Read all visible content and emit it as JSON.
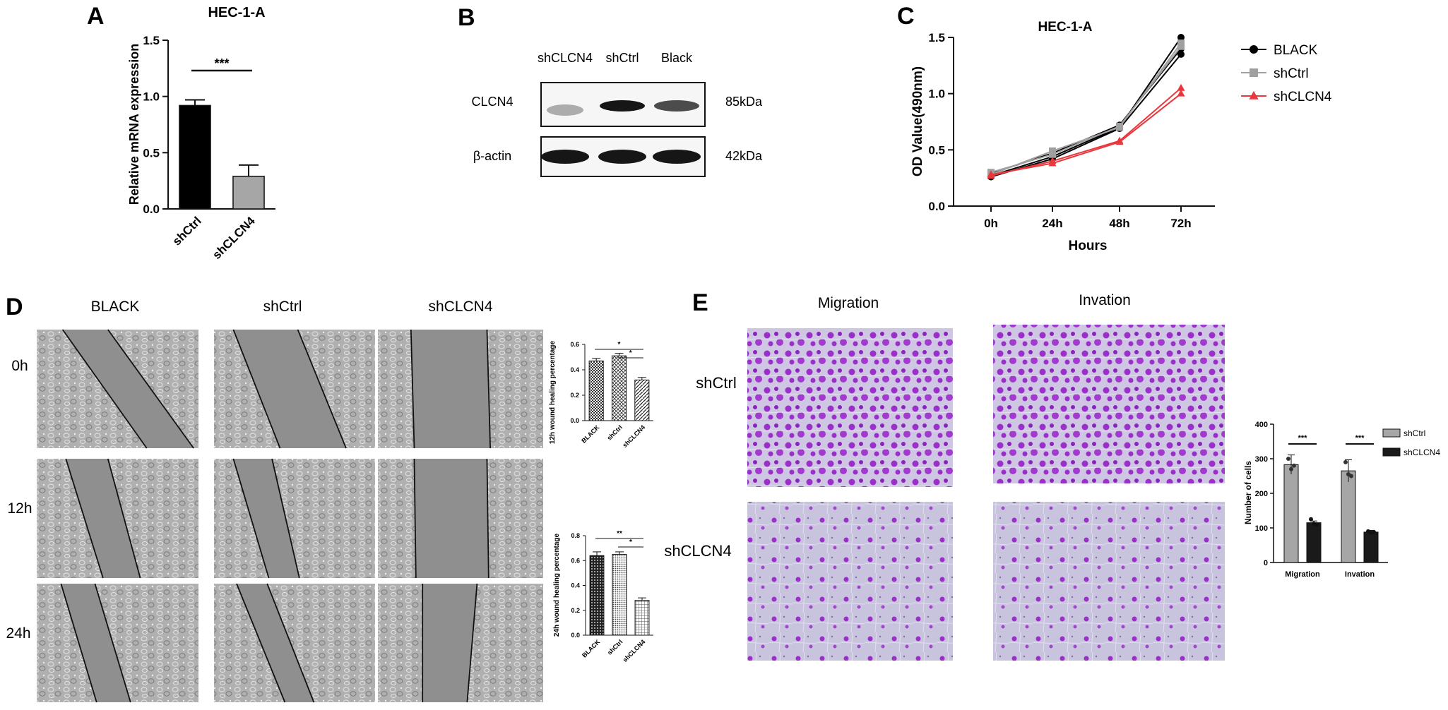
{
  "panels": {
    "A": {
      "letter": "A"
    },
    "B": {
      "letter": "B"
    },
    "C": {
      "letter": "C"
    },
    "D": {
      "letter": "D"
    },
    "E": {
      "letter": "E"
    }
  },
  "western_blot": {
    "lanes": [
      "shCLCN4",
      "shCtrl",
      "Black"
    ],
    "rows": [
      {
        "protein": "CLCN4",
        "size": "85kDa",
        "band_intensity": [
          0.3,
          1.0,
          0.75
        ]
      },
      {
        "protein": "β-actin",
        "size": "42kDa",
        "band_intensity": [
          1.0,
          1.0,
          1.0
        ]
      }
    ]
  },
  "scratch_assay": {
    "columns": [
      "BLACK",
      "shCtrl",
      "shCLCN4"
    ],
    "rows": [
      "0h",
      "12h",
      "24h"
    ],
    "colors": {
      "background": "#a9a9a9",
      "gap": "#8f8f8f",
      "edge": "#111111"
    }
  },
  "transwell": {
    "columns": [
      "Migration",
      "Invation"
    ],
    "rows": [
      "shCtrl",
      "shCLCN4"
    ],
    "colors": {
      "stain": "#9a2fc9",
      "background": "#cfc6e3"
    }
  },
  "chart_data": [
    {
      "id": "A",
      "type": "bar",
      "title": "HEC-1-A",
      "ylabel": "Relative mRNA expression",
      "categories": [
        "shCtrl",
        "shCLCN4"
      ],
      "values": [
        0.92,
        0.29
      ],
      "errors": [
        0.05,
        0.1
      ],
      "ylim": [
        0,
        1.5
      ],
      "yticks": [
        "0.0",
        "0.5",
        "1.0",
        "1.5"
      ],
      "significance": [
        {
          "pair": [
            0,
            1
          ],
          "label": "***"
        }
      ],
      "colors": [
        "#000000",
        "#a6a6a6"
      ]
    },
    {
      "id": "C",
      "type": "line",
      "title": "HEC-1-A",
      "xlabel": "Hours",
      "ylabel": "OD Value(490nm)",
      "x": [
        "0h",
        "24h",
        "48h",
        "72h"
      ],
      "ylim": [
        0,
        1.5
      ],
      "yticks": [
        "0.0",
        "0.5",
        "1.0",
        "1.5"
      ],
      "legend_position": "right",
      "series": [
        {
          "name": "BLACK",
          "color": "#000000",
          "marker": "circle",
          "replicates": [
            [
              0.27,
              0.44,
              0.7,
              1.5
            ],
            [
              0.29,
              0.47,
              0.72,
              1.4
            ],
            [
              0.26,
              0.42,
              0.69,
              1.35
            ]
          ]
        },
        {
          "name": "shCtrl",
          "color": "#a0a0a0",
          "marker": "square",
          "replicates": [
            [
              0.28,
              0.49,
              0.7,
              1.45
            ],
            [
              0.3,
              0.46,
              0.71,
              1.42
            ]
          ]
        },
        {
          "name": "shCLCN4",
          "color": "#e8383d",
          "marker": "triangle",
          "replicates": [
            [
              0.27,
              0.4,
              0.58,
              1.05
            ],
            [
              0.28,
              0.38,
              0.57,
              1.0
            ]
          ]
        }
      ]
    },
    {
      "id": "D1",
      "type": "bar",
      "ylabel": "12h wound healing percentage",
      "categories": [
        "BLACK",
        "shCtrl",
        "shCLCN4"
      ],
      "values": [
        0.47,
        0.51,
        0.32
      ],
      "errors": [
        0.02,
        0.02,
        0.02
      ],
      "ylim": [
        0,
        0.6
      ],
      "yticks": [
        "0.0",
        "0.2",
        "0.4",
        "0.6"
      ],
      "significance": [
        {
          "pair": [
            0,
            2
          ],
          "label": "*"
        },
        {
          "pair": [
            1,
            2
          ],
          "label": "*"
        }
      ],
      "fills": [
        "hatch",
        "cross",
        "diagonal"
      ]
    },
    {
      "id": "D2",
      "type": "bar",
      "ylabel": "24h wound healing percentage",
      "categories": [
        "BLACK",
        "shCtrl",
        "shCLCN4"
      ],
      "values": [
        0.64,
        0.65,
        0.28
      ],
      "errors": [
        0.03,
        0.02,
        0.02
      ],
      "ylim": [
        0,
        0.8
      ],
      "yticks": [
        "0.0",
        "0.2",
        "0.4",
        "0.6",
        "0.8"
      ],
      "significance": [
        {
          "pair": [
            0,
            2
          ],
          "label": "**"
        },
        {
          "pair": [
            1,
            2
          ],
          "label": "*"
        }
      ],
      "fills": [
        "dots",
        "fine-dots",
        "grid"
      ]
    },
    {
      "id": "E",
      "type": "bar",
      "ylabel": "Number of cells",
      "categories": [
        "Migration",
        "Invation"
      ],
      "ylim": [
        0,
        400
      ],
      "yticks": [
        "0",
        "100",
        "200",
        "300",
        "400"
      ],
      "legend_position": "right",
      "series": [
        {
          "name": "shCtrl",
          "color": "#a6a6a6",
          "values": [
            283,
            265
          ],
          "errors": [
            28,
            32
          ],
          "points": [
            [
              300,
              270,
              280
            ],
            [
              290,
              255,
              250
            ]
          ]
        },
        {
          "name": "shCLCN4",
          "color": "#1a1a1a",
          "values": [
            115,
            88
          ],
          "errors": [
            5,
            5
          ],
          "points": [
            [
              125,
              112,
              110
            ],
            [
              90,
              86,
              88
            ]
          ]
        }
      ],
      "significance": [
        {
          "group": 0,
          "label": "***"
        },
        {
          "group": 1,
          "label": "***"
        }
      ]
    }
  ]
}
